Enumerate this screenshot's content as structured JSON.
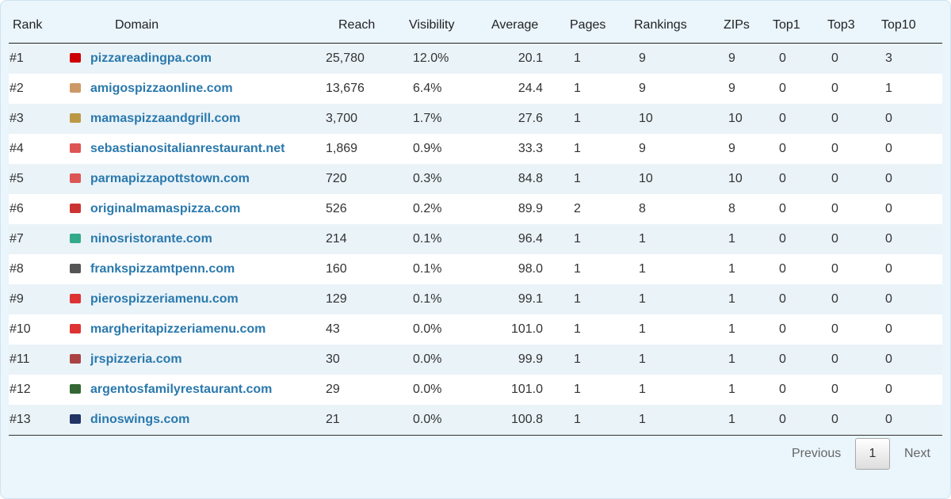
{
  "table": {
    "header": [
      "Rank",
      "Domain",
      "Reach",
      "Visibility",
      "Average",
      "Pages",
      "Rankings",
      "ZIPs",
      "Top1",
      "Top3",
      "Top10"
    ],
    "rows": [
      [
        "#1",
        "pizzareadingpa.com",
        "25,780",
        "12.0%",
        "20.1",
        "1",
        "9",
        "9",
        "0",
        "0",
        "3"
      ],
      [
        "#2",
        "amigospizzaonline.com",
        "13,676",
        "6.4%",
        "24.4",
        "1",
        "9",
        "9",
        "0",
        "0",
        "1"
      ],
      [
        "#3",
        "mamaspizzaandgrill.com",
        "3,700",
        "1.7%",
        "27.6",
        "1",
        "10",
        "10",
        "0",
        "0",
        "0"
      ],
      [
        "#4",
        "sebastianositalianrestaurant.net",
        "1,869",
        "0.9%",
        "33.3",
        "1",
        "9",
        "9",
        "0",
        "0",
        "0"
      ],
      [
        "#5",
        "parmapizzapottstown.com",
        "720",
        "0.3%",
        "84.8",
        "1",
        "10",
        "10",
        "0",
        "0",
        "0"
      ],
      [
        "#6",
        "originalmamaspizza.com",
        "526",
        "0.2%",
        "89.9",
        "2",
        "8",
        "8",
        "0",
        "0",
        "0"
      ],
      [
        "#7",
        "ninosristorante.com",
        "214",
        "0.1%",
        "96.4",
        "1",
        "1",
        "1",
        "0",
        "0",
        "0"
      ],
      [
        "#8",
        "frankspizzamtpenn.com",
        "160",
        "0.1%",
        "98.0",
        "1",
        "1",
        "1",
        "0",
        "0",
        "0"
      ],
      [
        "#9",
        "pierospizzeriamenu.com",
        "129",
        "0.1%",
        "99.1",
        "1",
        "1",
        "1",
        "0",
        "0",
        "0"
      ],
      [
        "#10",
        "margheritapizzeriamenu.com",
        "43",
        "0.0%",
        "101.0",
        "1",
        "1",
        "1",
        "0",
        "0",
        "0"
      ],
      [
        "#11",
        "jrspizzeria.com",
        "30",
        "0.0%",
        "99.9",
        "1",
        "1",
        "1",
        "0",
        "0",
        "0"
      ],
      [
        "#12",
        "argentosfamilyrestaurant.com",
        "29",
        "0.0%",
        "101.0",
        "1",
        "1",
        "1",
        "0",
        "0",
        "0"
      ],
      [
        "#13",
        "dinoswings.com",
        "21",
        "0.0%",
        "100.8",
        "1",
        "1",
        "1",
        "0",
        "0",
        "0"
      ]
    ]
  },
  "pagination": {
    "previous": "Previous",
    "current": "1",
    "next": "Next"
  }
}
